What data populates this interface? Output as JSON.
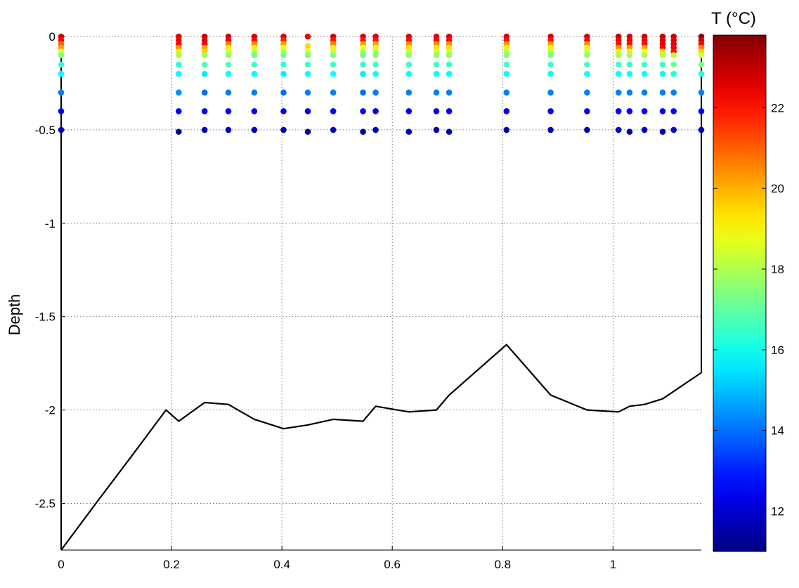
{
  "chart_data": {
    "type": "scatter",
    "title": "",
    "xlabel": "",
    "ylabel": "Depth",
    "xlim": [
      0,
      1.16
    ],
    "ylim": [
      -2.75,
      0
    ],
    "grid": true,
    "x_ticks": [
      0,
      0.2,
      0.4,
      0.6,
      0.8,
      1
    ],
    "x_tick_labels": [
      "0",
      "0.2",
      "0.4",
      "0.6",
      "0.8",
      "1"
    ],
    "y_ticks": [
      0,
      -0.5,
      -1,
      -1.5,
      -2,
      -2.5
    ],
    "y_tick_labels": [
      "0",
      "-0.5",
      "-1",
      "-1.5",
      "-2",
      "-2.5"
    ],
    "colorbar": {
      "label": "T (°C)",
      "range": [
        11,
        23.8
      ],
      "ticks": [
        12,
        14,
        16,
        18,
        20,
        22
      ],
      "tick_labels": [
        "12",
        "14",
        "16",
        "18",
        "20",
        "22"
      ],
      "colormap": "jet"
    },
    "stations": [
      {
        "x": 0.0,
        "depths": [
          0,
          -0.02,
          -0.04,
          -0.06,
          -0.08,
          -0.1,
          -0.15,
          -0.2,
          -0.3,
          -0.4,
          -0.5
        ],
        "temps": [
          22.8,
          22.2,
          21.0,
          20.2,
          18.6,
          17.4,
          16.4,
          15.8,
          14.2,
          12.6,
          12.0
        ]
      },
      {
        "x": 0.213,
        "depths": [
          0,
          -0.02,
          -0.04,
          -0.06,
          -0.08,
          -0.1,
          -0.15,
          -0.2,
          -0.3,
          -0.4,
          -0.51
        ],
        "temps": [
          22.6,
          22.4,
          22.2,
          20.4,
          19.2,
          17.8,
          16.4,
          15.8,
          14.4,
          12.6,
          11.4
        ]
      },
      {
        "x": 0.26,
        "depths": [
          0,
          -0.02,
          -0.04,
          -0.06,
          -0.08,
          -0.1,
          -0.15,
          -0.2,
          -0.3,
          -0.4,
          -0.5
        ],
        "temps": [
          22.8,
          22.5,
          22.3,
          20.2,
          19.6,
          17.8,
          16.8,
          15.6,
          14.0,
          12.4,
          11.8
        ]
      },
      {
        "x": 0.303,
        "depths": [
          0,
          -0.02,
          -0.04,
          -0.06,
          -0.08,
          -0.1,
          -0.15,
          -0.2,
          -0.3,
          -0.4,
          -0.5
        ],
        "temps": [
          22.6,
          22.4,
          20.6,
          19.2,
          18.4,
          17.6,
          16.8,
          15.8,
          14.2,
          12.6,
          11.8
        ]
      },
      {
        "x": 0.35,
        "depths": [
          0,
          -0.02,
          -0.04,
          -0.06,
          -0.08,
          -0.1,
          -0.15,
          -0.2,
          -0.3,
          -0.4,
          -0.5
        ],
        "temps": [
          22.6,
          22.2,
          20.4,
          19.2,
          18.2,
          17.2,
          16.6,
          15.8,
          14.2,
          12.4,
          11.8
        ]
      },
      {
        "x": 0.403,
        "depths": [
          0,
          -0.02,
          -0.04,
          -0.06,
          -0.08,
          -0.1,
          -0.15,
          -0.2,
          -0.3,
          -0.4,
          -0.5
        ],
        "temps": [
          22.6,
          21.8,
          20.2,
          19.0,
          18.0,
          17.2,
          16.4,
          15.6,
          14.0,
          12.4,
          11.6
        ]
      },
      {
        "x": 0.447,
        "depths": [
          0,
          -0.05,
          -0.08,
          -0.1,
          -0.15,
          -0.2,
          -0.3,
          -0.4,
          -0.51
        ],
        "temps": [
          22.4,
          19.4,
          18.6,
          17.4,
          16.6,
          15.8,
          14.2,
          12.4,
          11.6
        ]
      },
      {
        "x": 0.493,
        "depths": [
          0,
          -0.02,
          -0.04,
          -0.06,
          -0.08,
          -0.1,
          -0.15,
          -0.2,
          -0.3,
          -0.4,
          -0.5
        ],
        "temps": [
          22.6,
          22.0,
          20.6,
          19.2,
          18.4,
          17.4,
          16.6,
          15.8,
          14.2,
          12.4,
          11.8
        ]
      },
      {
        "x": 0.547,
        "depths": [
          0,
          -0.02,
          -0.04,
          -0.06,
          -0.08,
          -0.1,
          -0.15,
          -0.2,
          -0.3,
          -0.4,
          -0.51
        ],
        "temps": [
          22.6,
          22.0,
          20.2,
          19.0,
          18.0,
          17.2,
          16.4,
          15.6,
          14.0,
          12.4,
          11.6
        ]
      },
      {
        "x": 0.57,
        "depths": [
          0,
          -0.02,
          -0.04,
          -0.06,
          -0.08,
          -0.1,
          -0.15,
          -0.2,
          -0.3,
          -0.4,
          -0.5
        ],
        "temps": [
          22.6,
          22.0,
          20.2,
          19.2,
          18.2,
          17.4,
          16.6,
          15.8,
          14.2,
          12.4,
          11.6
        ]
      },
      {
        "x": 0.63,
        "depths": [
          0,
          -0.02,
          -0.04,
          -0.06,
          -0.08,
          -0.1,
          -0.15,
          -0.2,
          -0.3,
          -0.4,
          -0.51
        ],
        "temps": [
          22.4,
          22.2,
          20.4,
          19.4,
          18.4,
          17.6,
          16.6,
          15.8,
          14.2,
          12.4,
          11.6
        ]
      },
      {
        "x": 0.68,
        "depths": [
          0,
          -0.02,
          -0.04,
          -0.06,
          -0.08,
          -0.1,
          -0.15,
          -0.2,
          -0.3,
          -0.4,
          -0.5
        ],
        "temps": [
          22.4,
          22.2,
          20.4,
          19.4,
          18.4,
          17.6,
          16.6,
          15.8,
          14.2,
          12.4,
          11.6
        ]
      },
      {
        "x": 0.703,
        "depths": [
          0,
          -0.02,
          -0.04,
          -0.06,
          -0.08,
          -0.1,
          -0.15,
          -0.2,
          -0.3,
          -0.4,
          -0.51
        ],
        "temps": [
          22.6,
          22.2,
          20.4,
          19.4,
          18.4,
          17.6,
          16.6,
          15.8,
          14.2,
          12.4,
          11.6
        ]
      },
      {
        "x": 0.807,
        "depths": [
          0,
          -0.02,
          -0.04,
          -0.06,
          -0.08,
          -0.1,
          -0.15,
          -0.2,
          -0.3,
          -0.4,
          -0.5
        ],
        "temps": [
          22.6,
          22.0,
          20.2,
          19.2,
          18.2,
          17.4,
          16.6,
          15.8,
          14.2,
          12.4,
          11.6
        ]
      },
      {
        "x": 0.887,
        "depths": [
          0,
          -0.02,
          -0.04,
          -0.06,
          -0.08,
          -0.1,
          -0.15,
          -0.2,
          -0.3,
          -0.4,
          -0.5
        ],
        "temps": [
          22.6,
          22.0,
          20.2,
          19.2,
          18.2,
          17.4,
          16.6,
          15.8,
          14.2,
          12.4,
          11.6
        ]
      },
      {
        "x": 0.953,
        "depths": [
          0,
          -0.02,
          -0.04,
          -0.06,
          -0.08,
          -0.1,
          -0.15,
          -0.2,
          -0.3,
          -0.4,
          -0.5
        ],
        "temps": [
          22.6,
          22.2,
          20.4,
          19.2,
          18.4,
          17.6,
          16.6,
          15.8,
          14.2,
          12.4,
          11.6
        ]
      },
      {
        "x": 1.01,
        "depths": [
          0,
          -0.02,
          -0.04,
          -0.06,
          -0.08,
          -0.1,
          -0.15,
          -0.2,
          -0.3,
          -0.4,
          -0.5
        ],
        "temps": [
          22.8,
          22.4,
          22.0,
          20.4,
          19.2,
          17.8,
          16.6,
          15.8,
          14.2,
          12.6,
          11.8
        ]
      },
      {
        "x": 1.03,
        "depths": [
          0,
          -0.02,
          -0.04,
          -0.06,
          -0.08,
          -0.1,
          -0.15,
          -0.2,
          -0.3,
          -0.4,
          -0.51
        ],
        "temps": [
          22.6,
          22.4,
          22.0,
          20.4,
          19.2,
          17.8,
          16.6,
          15.8,
          14.2,
          12.6,
          11.6
        ]
      },
      {
        "x": 1.057,
        "depths": [
          0,
          -0.02,
          -0.04,
          -0.06,
          -0.08,
          -0.1,
          -0.15,
          -0.2,
          -0.3,
          -0.4,
          -0.5
        ],
        "temps": [
          22.6,
          22.4,
          22.0,
          20.2,
          19.0,
          17.8,
          16.6,
          15.8,
          14.2,
          12.6,
          11.8
        ]
      },
      {
        "x": 1.09,
        "depths": [
          0,
          -0.02,
          -0.04,
          -0.06,
          -0.08,
          -0.1,
          -0.15,
          -0.2,
          -0.3,
          -0.4,
          -0.51
        ],
        "temps": [
          22.8,
          22.6,
          22.4,
          22.2,
          19.4,
          18.0,
          16.6,
          15.8,
          14.2,
          12.6,
          11.6
        ]
      },
      {
        "x": 1.11,
        "depths": [
          0,
          -0.02,
          -0.04,
          -0.06,
          -0.08,
          -0.1,
          -0.15,
          -0.2,
          -0.3,
          -0.4,
          -0.5
        ],
        "temps": [
          22.8,
          22.6,
          22.4,
          22.2,
          22.0,
          18.2,
          17.2,
          16.2,
          14.2,
          12.6,
          11.8
        ]
      },
      {
        "x": 1.16,
        "depths": [
          0,
          -0.02,
          -0.04,
          -0.06,
          -0.08,
          -0.1,
          -0.15,
          -0.2,
          -0.3,
          -0.4,
          -0.5
        ],
        "temps": [
          23.4,
          22.8,
          22.2,
          20.6,
          19.6,
          18.4,
          17.4,
          16.2,
          14.2,
          12.6,
          11.8
        ]
      }
    ],
    "bottom_profile": {
      "x": [
        0,
        0.063,
        0.127,
        0.19,
        0.213,
        0.26,
        0.303,
        0.35,
        0.403,
        0.447,
        0.493,
        0.547,
        0.57,
        0.63,
        0.68,
        0.703,
        0.807,
        0.887,
        0.953,
        1.01,
        1.03,
        1.057,
        1.09,
        1.16
      ],
      "y": [
        -2.75,
        -2.5,
        -2.25,
        -2.0,
        -2.06,
        -1.96,
        -1.97,
        -2.05,
        -2.1,
        -2.08,
        -2.05,
        -2.06,
        -1.98,
        -2.01,
        -2.0,
        -1.92,
        -1.65,
        -1.92,
        -2.0,
        -2.01,
        -1.98,
        -1.97,
        -1.94,
        -1.8
      ]
    },
    "bottom_markers": [
      {
        "x": 0,
        "y_top": 0,
        "y_bottom": -2.75
      },
      {
        "x": 1.16,
        "y_top": 0,
        "y_bottom": -1.8
      }
    ]
  }
}
